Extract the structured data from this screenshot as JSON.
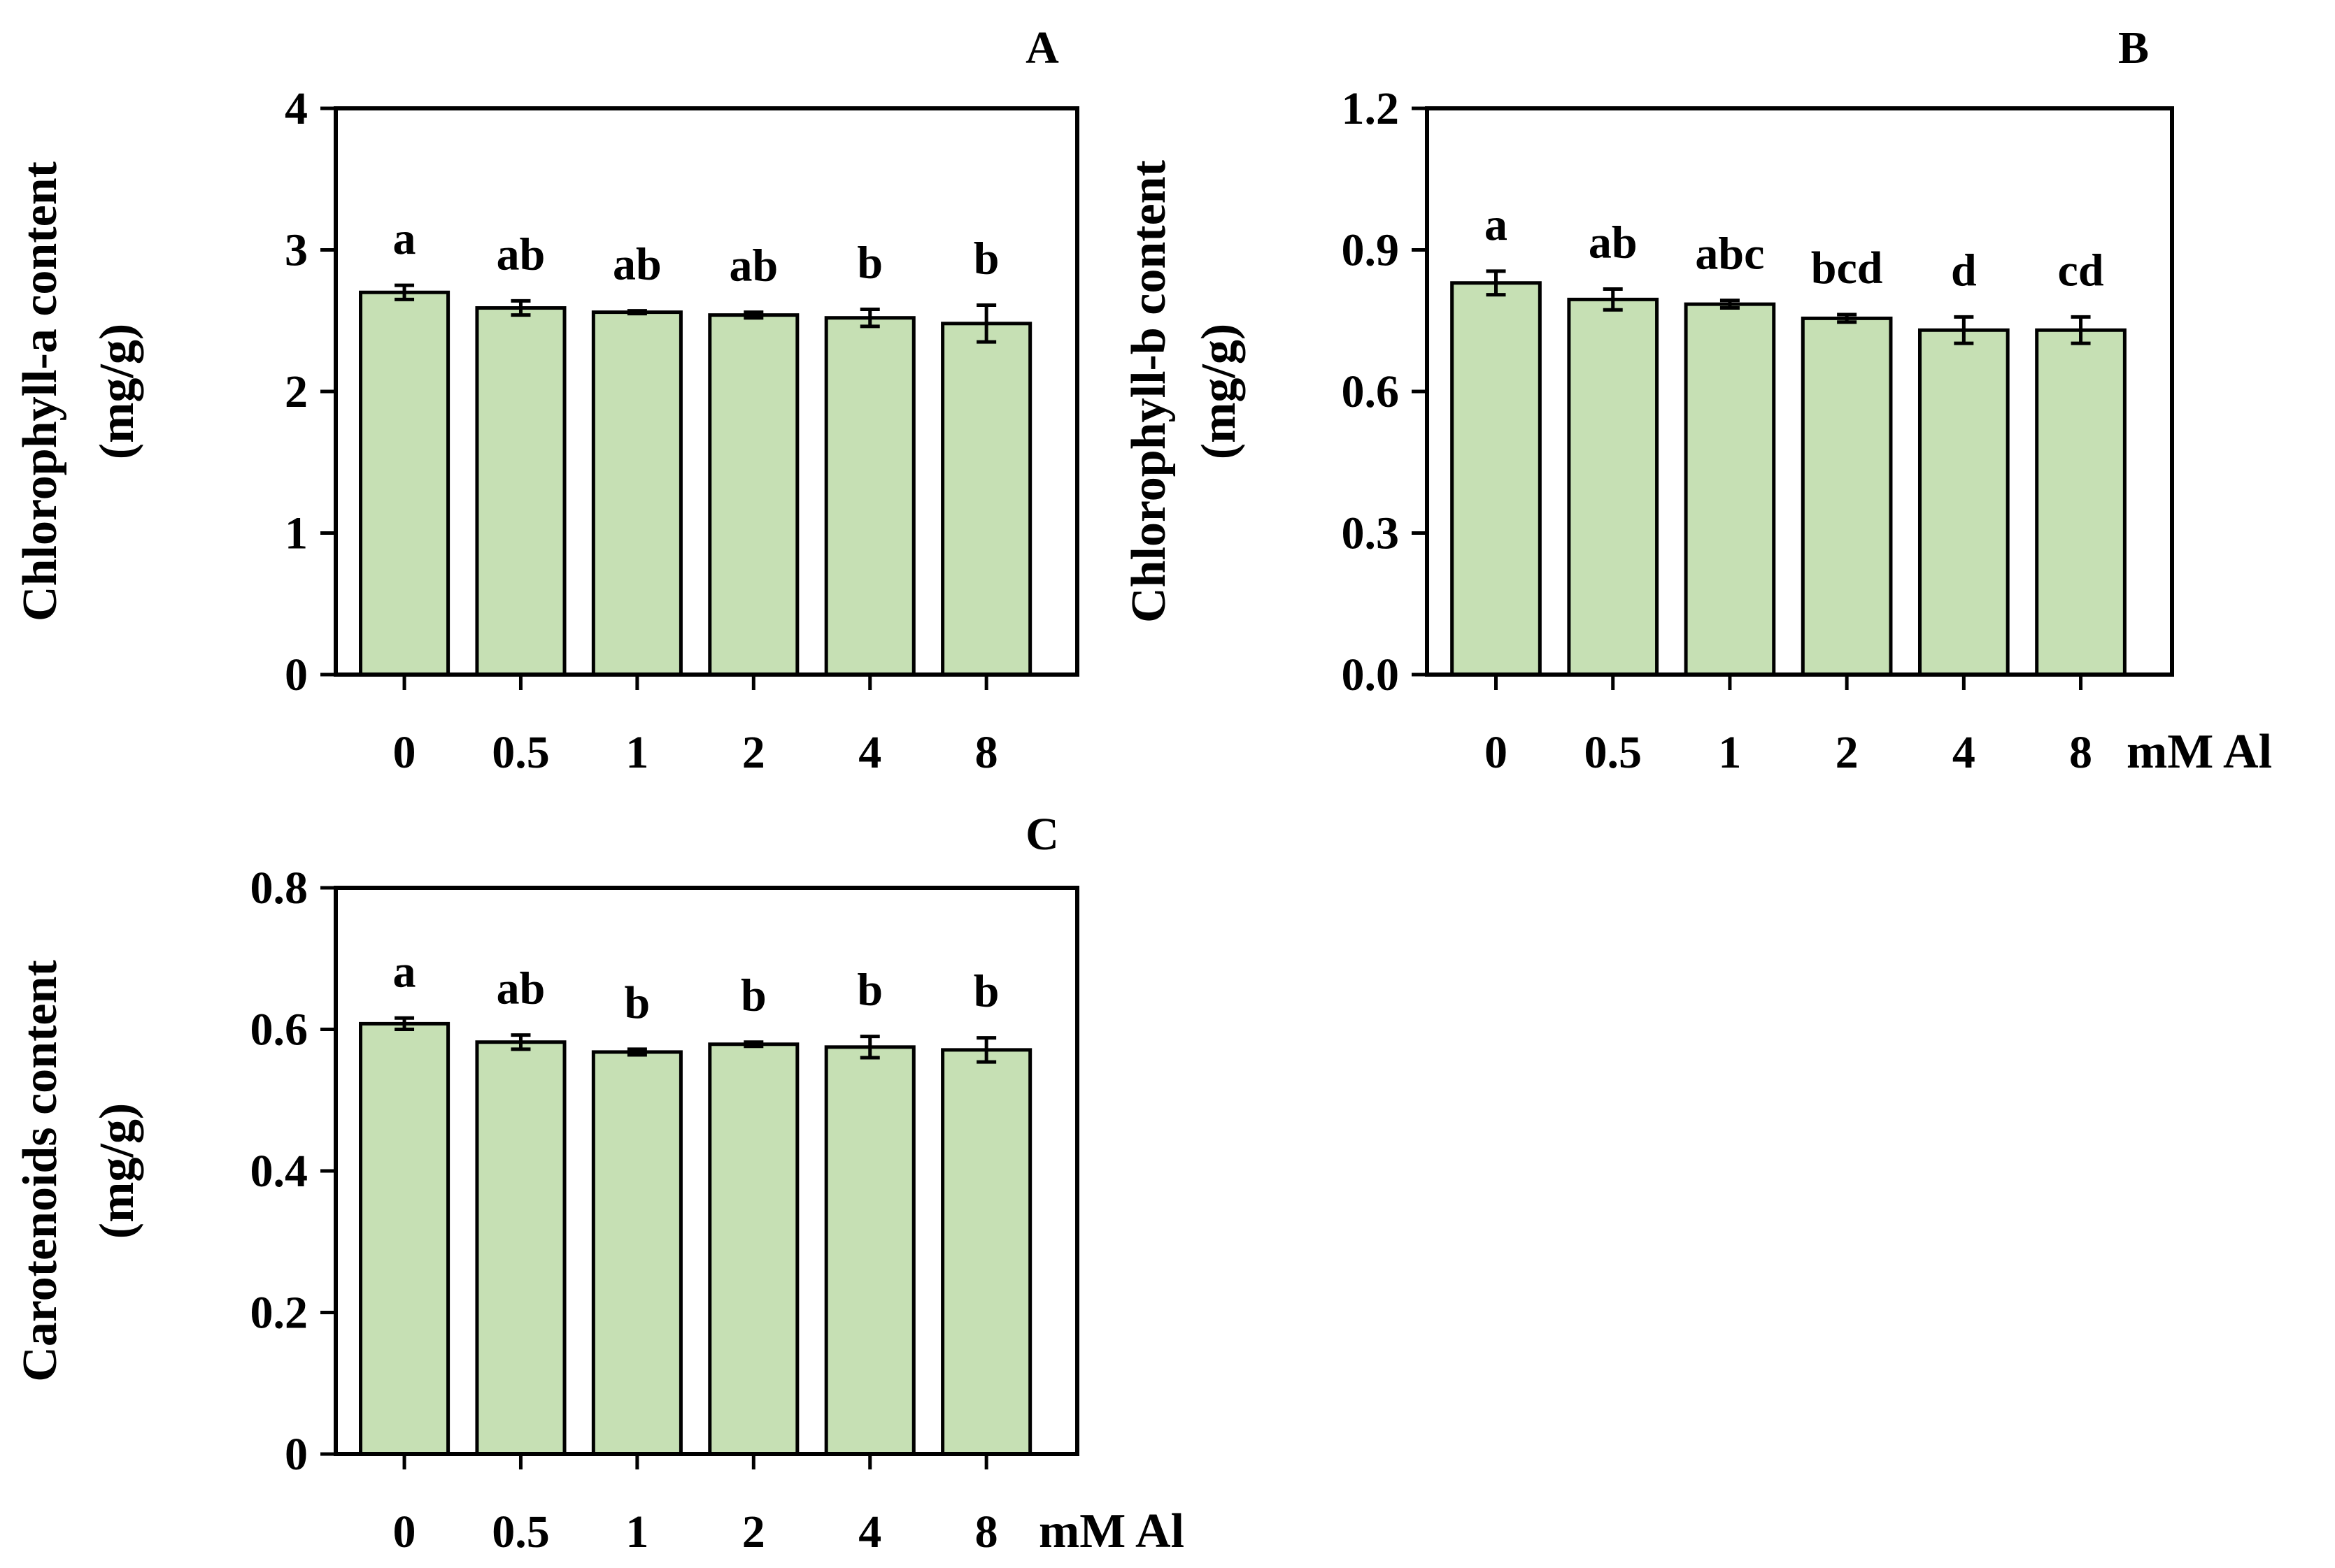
{
  "chart_data": [
    {
      "panel": "A",
      "type": "bar",
      "categories": [
        "0",
        "0.5",
        "1",
        "2",
        "4",
        "8"
      ],
      "values": [
        2.7,
        2.59,
        2.56,
        2.54,
        2.52,
        2.48
      ],
      "errors": [
        0.05,
        0.05,
        0.01,
        0.02,
        0.06,
        0.13
      ],
      "letters": [
        "a",
        "ab",
        "ab",
        "ab",
        "b",
        "b"
      ],
      "ylabel": "Chlorophyll-a content",
      "ylabel_unit": "(mg/g)",
      "xunit": "",
      "ylim": [
        0,
        4
      ],
      "yticks": [
        "0",
        "1",
        "2",
        "3",
        "4"
      ],
      "bar_color": "#c6e0b4",
      "grid": false
    },
    {
      "panel": "B",
      "type": "bar",
      "categories": [
        "0",
        "0.5",
        "1",
        "2",
        "4",
        "8"
      ],
      "values": [
        0.83,
        0.795,
        0.785,
        0.755,
        0.73,
        0.73
      ],
      "errors": [
        0.025,
        0.022,
        0.008,
        0.008,
        0.028,
        0.028
      ],
      "letters": [
        "a",
        "ab",
        "abc",
        "bcd",
        "d",
        "cd"
      ],
      "ylabel": "Chlorophyll-b content",
      "ylabel_unit": "(mg/g)",
      "xunit": "mM Al",
      "ylim": [
        0,
        1.2
      ],
      "yticks": [
        "0.0",
        "0.3",
        "0.6",
        "0.9",
        "1.2"
      ],
      "bar_color": "#c6e0b4",
      "grid": false
    },
    {
      "panel": "C",
      "type": "bar",
      "categories": [
        "0",
        "0.5",
        "1",
        "2",
        "4",
        "8"
      ],
      "values": [
        0.608,
        0.582,
        0.568,
        0.579,
        0.575,
        0.571
      ],
      "errors": [
        0.008,
        0.01,
        0.004,
        0.003,
        0.015,
        0.017
      ],
      "letters": [
        "a",
        "ab",
        "b",
        "b",
        "b",
        "b"
      ],
      "ylabel": "Carotenoids content",
      "ylabel_unit": "(mg/g)",
      "xunit": "mM Al",
      "ylim": [
        0,
        0.8
      ],
      "yticks": [
        "0",
        "0.2",
        "0.4",
        "0.6",
        "0.8"
      ],
      "bar_color": "#c6e0b4",
      "grid": false
    }
  ]
}
